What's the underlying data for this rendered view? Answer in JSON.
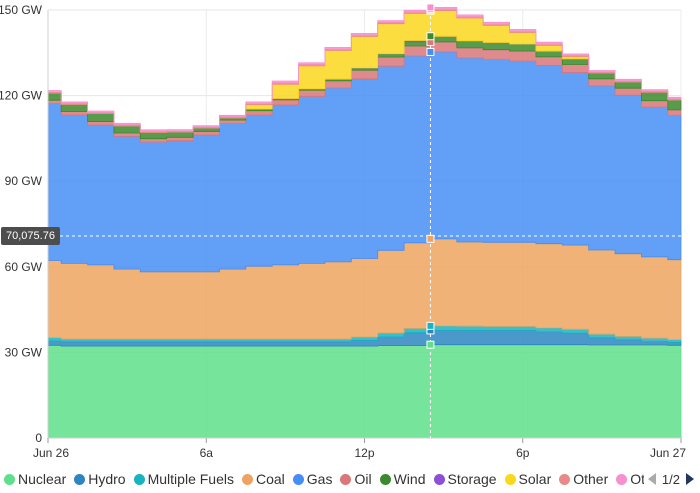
{
  "chart_data": {
    "type": "area",
    "stacked": true,
    "step": true,
    "x_tick_labels": [
      "Jun 26",
      "6a",
      "12p",
      "6p",
      "Jun 27"
    ],
    "y_tick_labels": [
      "0",
      "30 GW",
      "60 GW",
      "90 GW",
      "120 GW",
      "150 GW"
    ],
    "ylim": [
      0,
      150
    ],
    "hours": 24,
    "crosshair_hour": 14.5,
    "crosshair_value_label": "70,075.76",
    "series": [
      {
        "name": "Nuclear",
        "color": "#5ee08a",
        "values": [
          32.5,
          32.2,
          32.2,
          32.2,
          32.2,
          32.2,
          32.2,
          32.2,
          32.2,
          32.2,
          32.2,
          32.2,
          32.2,
          32.4,
          32.4,
          32.7,
          32.7,
          32.7,
          32.7,
          32.7,
          32.7,
          32.6,
          32.6,
          32.6,
          32.5
        ]
      },
      {
        "name": "Hydro",
        "color": "#2e86c1",
        "values": [
          1.5,
          1.5,
          1.5,
          1.5,
          1.5,
          1.5,
          1.5,
          1.5,
          1.5,
          1.5,
          1.5,
          1.5,
          2.0,
          3.0,
          4.5,
          5.0,
          5.0,
          5.0,
          5.0,
          4.5,
          4.0,
          2.5,
          1.8,
          1.2,
          1.0
        ]
      },
      {
        "name": "Multiple Fuels",
        "color": "#17b3c1",
        "values": [
          1.2,
          1.0,
          1.0,
          1.0,
          1.0,
          1.0,
          1.0,
          1.0,
          1.0,
          1.0,
          1.0,
          1.0,
          1.2,
          1.4,
          1.5,
          1.6,
          1.5,
          1.4,
          1.4,
          1.4,
          1.4,
          1.3,
          1.2,
          1.2,
          1.0
        ]
      },
      {
        "name": "Coal",
        "color": "#eda45f",
        "values": [
          27.0,
          26.5,
          26.0,
          24.5,
          23.5,
          23.5,
          23.5,
          24.5,
          25.5,
          26.0,
          26.5,
          27.0,
          27.5,
          29.0,
          30.0,
          30.5,
          29.5,
          29.5,
          29.5,
          29.5,
          29.5,
          29.5,
          29.0,
          28.5,
          28.0
        ]
      },
      {
        "name": "Gas",
        "color": "#468ef5",
        "values": [
          55.0,
          52.0,
          49.0,
          46.5,
          45.5,
          46.0,
          48.0,
          51.0,
          53.0,
          56.0,
          58.5,
          61.0,
          63.0,
          64.5,
          65.5,
          65.5,
          64.5,
          64.0,
          63.5,
          62.5,
          60.5,
          57.5,
          55.5,
          52.5,
          50.5
        ]
      },
      {
        "name": "Oil",
        "color": "#d9777a",
        "values": [
          1.2,
          1.2,
          1.2,
          1.2,
          1.2,
          1.2,
          1.2,
          1.2,
          1.5,
          1.8,
          2.2,
          2.5,
          3.0,
          3.2,
          3.5,
          3.5,
          3.5,
          3.5,
          3.5,
          3.0,
          2.8,
          2.5,
          2.5,
          2.2,
          2.0
        ]
      },
      {
        "name": "Wind",
        "color": "#3c8a2e",
        "values": [
          2.5,
          2.5,
          2.8,
          2.5,
          2.2,
          1.8,
          1.2,
          0.8,
          0.6,
          0.5,
          0.5,
          0.6,
          0.8,
          1.2,
          1.5,
          2.0,
          2.5,
          2.5,
          2.5,
          2.0,
          2.0,
          2.0,
          2.2,
          3.0,
          3.5
        ]
      },
      {
        "name": "Storage",
        "color": "#8e4fd6",
        "values": [
          0,
          0,
          0,
          0,
          0,
          0,
          0,
          0,
          0,
          0,
          0,
          0,
          0,
          0,
          0.4,
          0,
          0,
          0,
          0,
          0,
          0,
          0,
          0,
          0,
          0
        ]
      },
      {
        "name": "Solar",
        "color": "#fbd71e",
        "values": [
          0,
          0,
          0,
          0,
          0,
          0,
          0,
          0,
          1.5,
          5.0,
          8.0,
          10.0,
          11.0,
          10.5,
          9.5,
          9.0,
          8.0,
          6.0,
          4.0,
          2.0,
          0.8,
          0,
          0,
          0,
          0
        ]
      },
      {
        "name": "Other",
        "color": "#e88a86",
        "values": [
          0.4,
          0.4,
          0.4,
          0.4,
          0.4,
          0.4,
          0.4,
          0.4,
          0.4,
          0.5,
          0.5,
          0.5,
          0.5,
          0.5,
          0.5,
          0.5,
          0.5,
          0.5,
          0.5,
          0.5,
          0.4,
          0.4,
          0.4,
          0.4,
          0.4
        ]
      },
      {
        "name": "Other",
        "color": "#f78fd0",
        "values": [
          0.5,
          0.5,
          0.5,
          0.5,
          0.5,
          0.5,
          0.5,
          0.5,
          0.6,
          0.6,
          0.6,
          0.6,
          0.6,
          0.6,
          0.6,
          0.6,
          0.6,
          0.6,
          0.6,
          0.6,
          0.5,
          0.5,
          0.5,
          0.5,
          0.5
        ]
      }
    ]
  },
  "legend": {
    "page_label": "1/2"
  }
}
